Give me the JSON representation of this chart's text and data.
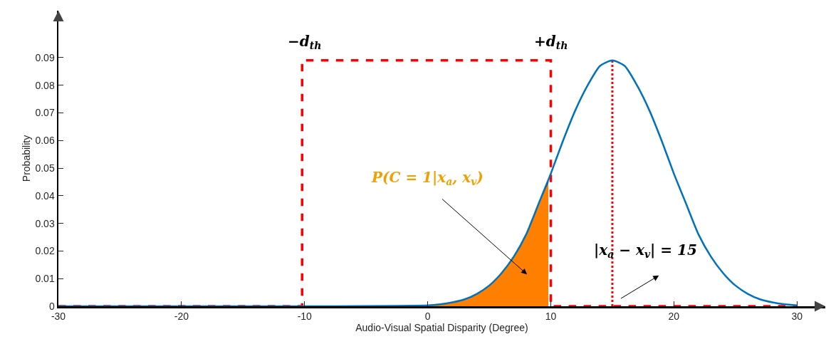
{
  "chart_data": {
    "type": "line",
    "xlabel": "Audio-Visual Spatial Disparity (Degree)",
    "ylabel": "Probability",
    "xlim": [
      -30,
      32.3
    ],
    "ylim": [
      0,
      0.107
    ],
    "xticks": [
      -30,
      -20,
      -10,
      0,
      10,
      20,
      30
    ],
    "yticks": [
      0,
      0.01,
      0.02,
      0.03,
      0.04,
      0.05,
      0.06,
      0.07,
      0.08,
      0.09
    ],
    "grid": false,
    "marker": "none",
    "series": [
      {
        "type": "area",
        "color": "#ff8000",
        "line_style": "solid",
        "x": [
          0,
          1,
          2,
          3,
          4,
          5,
          6,
          7,
          8,
          9,
          9.8
        ],
        "values": [
          0.0003,
          0.0007,
          0.0014,
          0.0025,
          0.0045,
          0.0075,
          0.012,
          0.018,
          0.026,
          0.037,
          0.045
        ]
      },
      {
        "color": "#ff0000",
        "line_style": "dashed",
        "x": [
          -30,
          -10.2,
          -10.2,
          10,
          10,
          30
        ],
        "values": [
          0,
          0,
          0.089,
          0.089,
          0,
          0
        ]
      },
      {
        "color": "#ff0000",
        "line_style": "dotted",
        "x": [
          15,
          15
        ],
        "values": [
          0,
          0.089
        ]
      },
      {
        "color": "#0072bd",
        "line_style": "solid",
        "x": [
          -30,
          -10,
          0,
          1,
          2,
          3,
          4,
          5,
          6,
          7,
          8,
          9,
          10,
          11,
          12,
          13,
          14,
          15,
          16,
          17,
          18,
          19,
          20,
          21,
          22,
          23,
          24,
          25,
          26,
          27,
          28,
          29,
          30
        ],
        "values": [
          0,
          0,
          0.0003,
          0.0007,
          0.0014,
          0.0025,
          0.0045,
          0.0075,
          0.012,
          0.018,
          0.026,
          0.037,
          0.048,
          0.06,
          0.071,
          0.08,
          0.087,
          0.089,
          0.087,
          0.08,
          0.071,
          0.06,
          0.048,
          0.037,
          0.026,
          0.018,
          0.012,
          0.0075,
          0.0045,
          0.0025,
          0.0014,
          0.0007,
          0.0003
        ]
      }
    ],
    "annotations": [
      {
        "text": "−d$_{th}$",
        "x": -10,
        "y": 0.089
      },
      {
        "text": "+d$_{th}$",
        "x": 10,
        "y": 0.089
      },
      "P(C = 1|x$_{a}$, x$_{v}$)",
      "|x$_{a}$ − x$_{v}$| = 15"
    ]
  }
}
